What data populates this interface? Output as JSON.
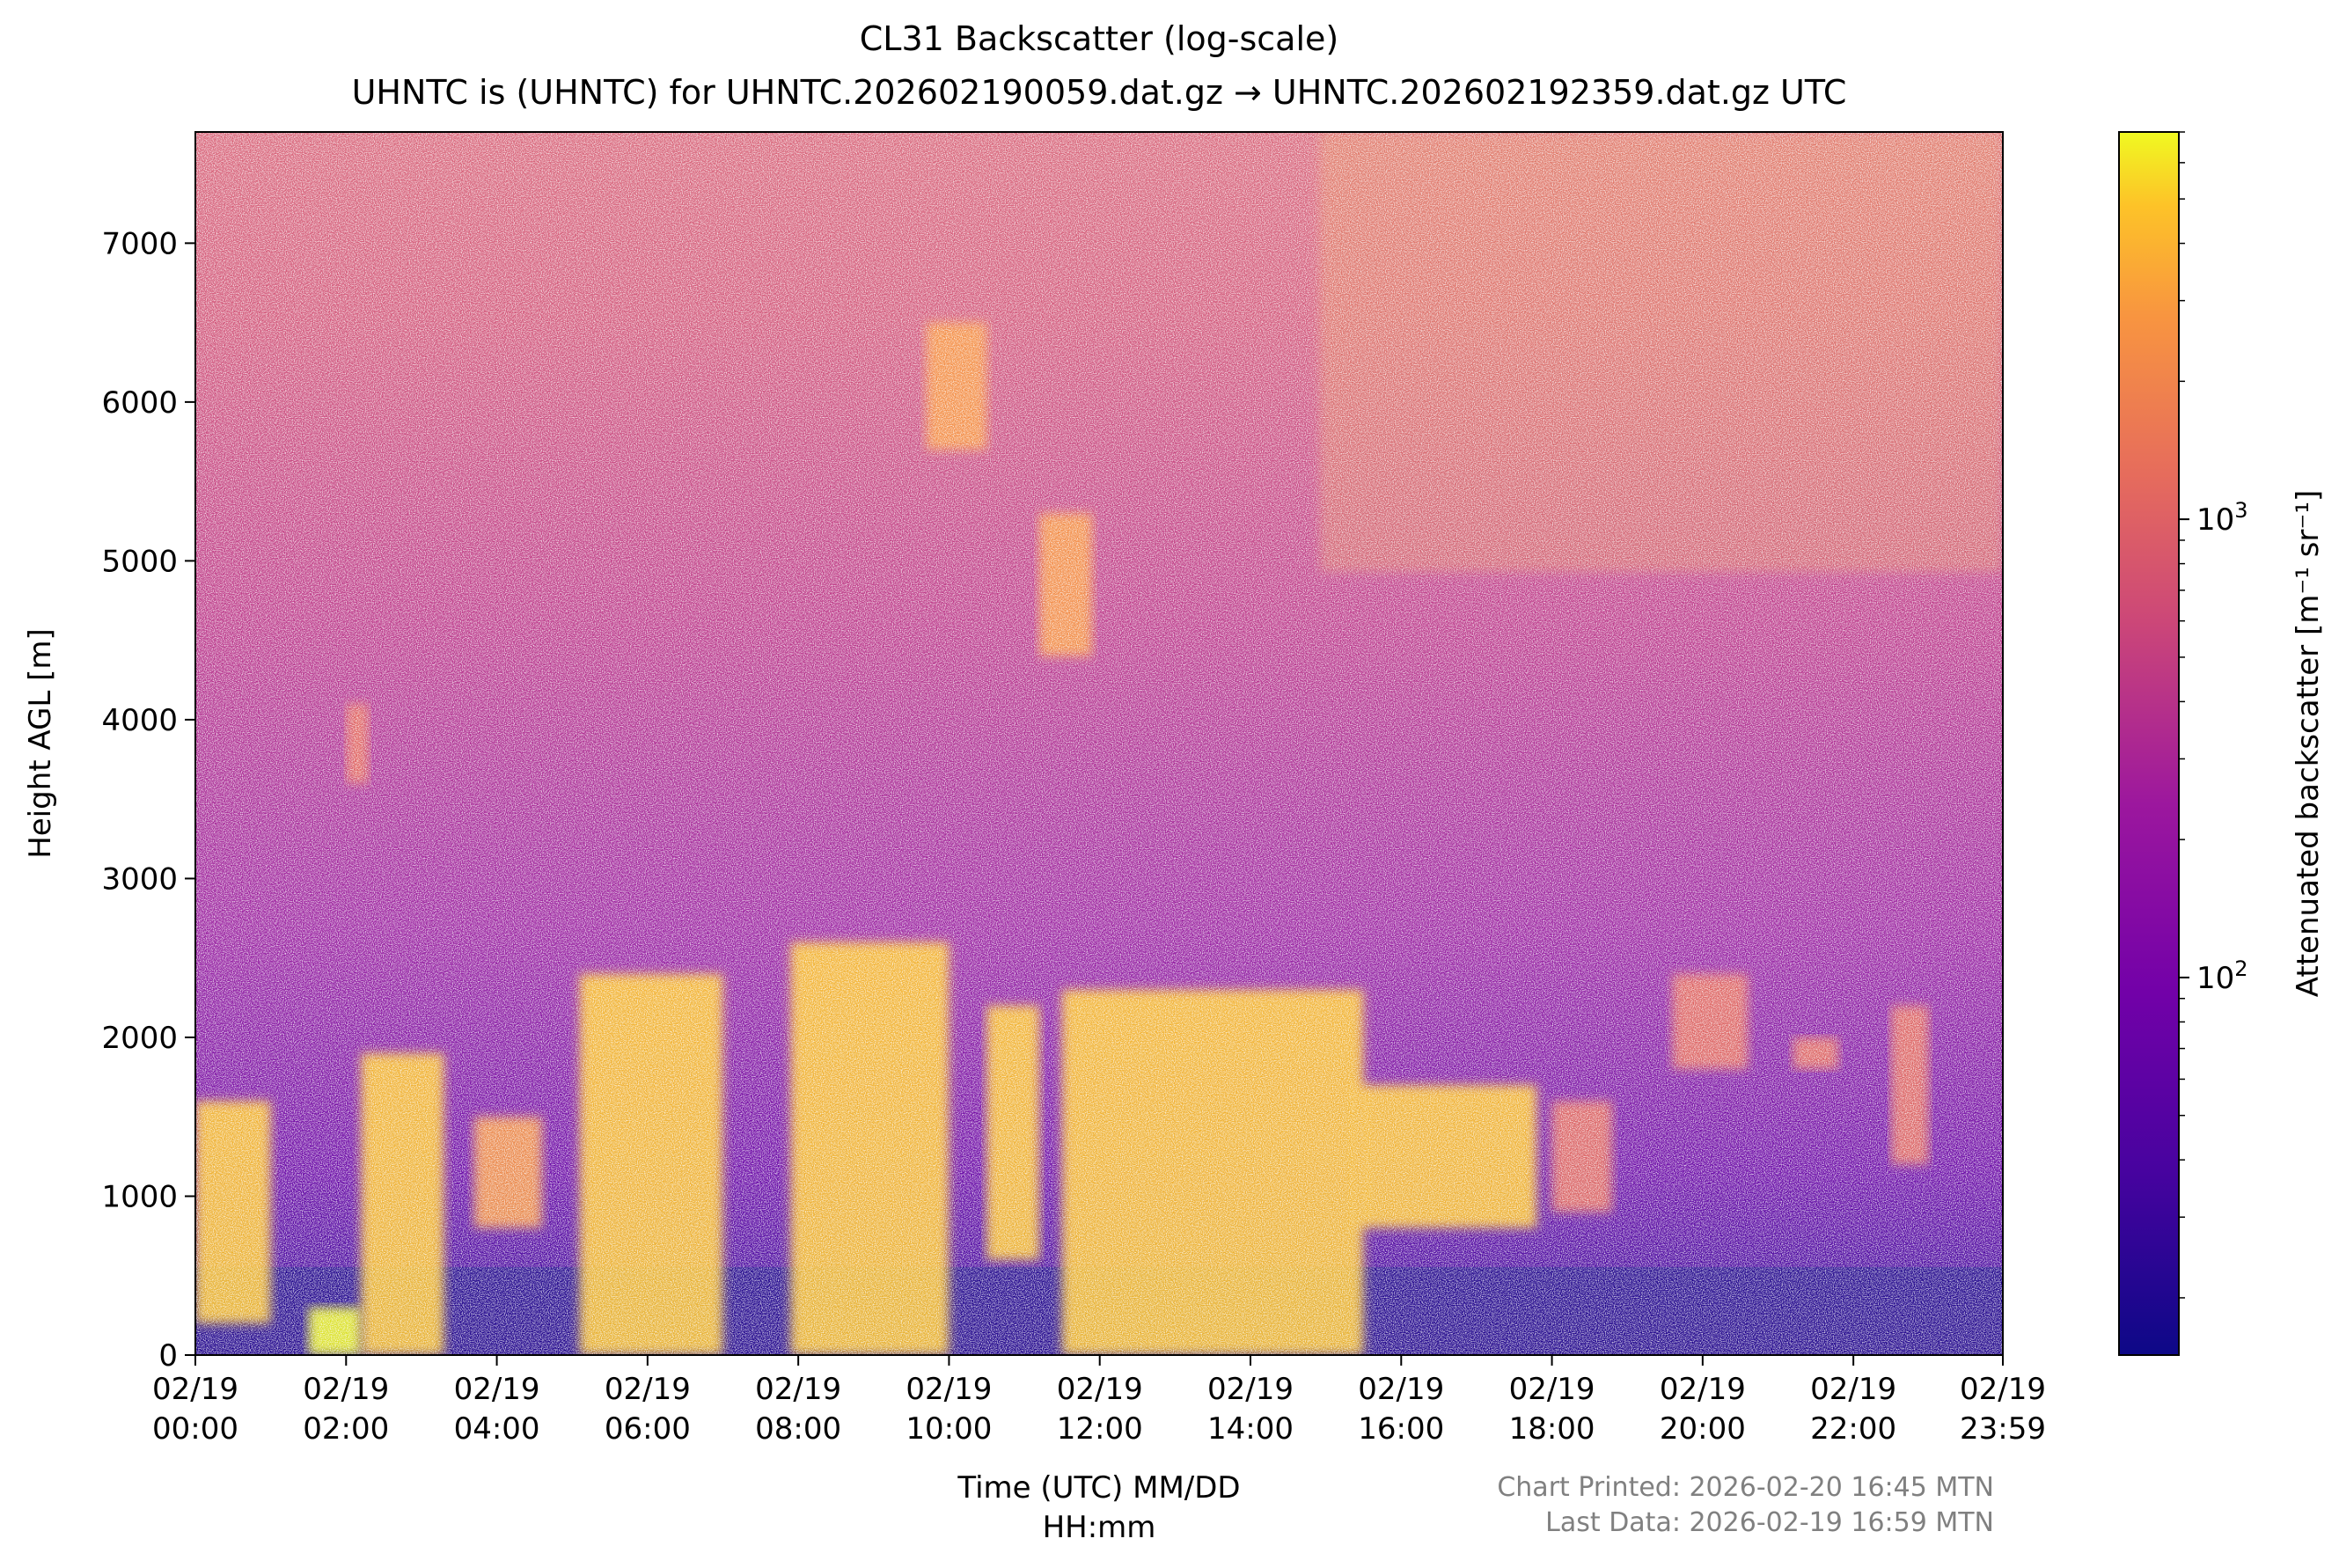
{
  "chart_data": {
    "type": "heatmap",
    "title": "CL31 Backscatter (log-scale)",
    "subtitle": "UHNTC is (UHNTC) for UHNTC.202602190059.dat.gz → UHNTC.202602192359.dat.gz UTC",
    "xlabel_line1": "Time (UTC) MM/DD",
    "xlabel_line2": "HH:mm",
    "ylabel": "Height AGL [m]",
    "colorbar_label": "Attenuated backscatter [m⁻¹ sr⁻¹]",
    "colormap": "plasma",
    "colorscale": "log",
    "colorbar_range": [
      15,
      7000
    ],
    "colorbar_ticks": [
      {
        "value": 100,
        "base": "10",
        "exp": "2"
      },
      {
        "value": 1000,
        "base": "10",
        "exp": "3"
      }
    ],
    "x_range_hours": [
      0,
      23.9833
    ],
    "ylim": [
      0,
      7700
    ],
    "y_ticks": [
      0,
      1000,
      2000,
      3000,
      4000,
      5000,
      6000,
      7000
    ],
    "x_ticks": [
      {
        "hour": 0,
        "date": "02/19",
        "time": "00:00"
      },
      {
        "hour": 2,
        "date": "02/19",
        "time": "02:00"
      },
      {
        "hour": 4,
        "date": "02/19",
        "time": "04:00"
      },
      {
        "hour": 6,
        "date": "02/19",
        "time": "06:00"
      },
      {
        "hour": 8,
        "date": "02/19",
        "time": "08:00"
      },
      {
        "hour": 10,
        "date": "02/19",
        "time": "10:00"
      },
      {
        "hour": 12,
        "date": "02/19",
        "time": "12:00"
      },
      {
        "hour": 14,
        "date": "02/19",
        "time": "14:00"
      },
      {
        "hour": 16,
        "date": "02/19",
        "time": "16:00"
      },
      {
        "hour": 18,
        "date": "02/19",
        "time": "18:00"
      },
      {
        "hour": 20,
        "date": "02/19",
        "time": "20:00"
      },
      {
        "hour": 22,
        "date": "02/19",
        "time": "22:00"
      },
      {
        "hour": 23.9833,
        "date": "02/19",
        "time": "23:59"
      }
    ],
    "cloud_layers": [
      {
        "t0": 0.0,
        "t1": 1.0,
        "base_m": 200,
        "top_m": 1600,
        "intensity": 3000
      },
      {
        "t0": 1.5,
        "t1": 2.2,
        "base_m": 0,
        "top_m": 300,
        "intensity": 5000
      },
      {
        "t0": 2.2,
        "t1": 3.3,
        "base_m": 0,
        "top_m": 1900,
        "intensity": 3000
      },
      {
        "t0": 3.7,
        "t1": 4.6,
        "base_m": 800,
        "top_m": 1500,
        "intensity": 1500
      },
      {
        "t0": 5.1,
        "t1": 7.0,
        "base_m": 0,
        "top_m": 2400,
        "intensity": 3500
      },
      {
        "t0": 7.9,
        "t1": 10.0,
        "base_m": 0,
        "top_m": 2600,
        "intensity": 3500
      },
      {
        "t0": 10.5,
        "t1": 11.2,
        "base_m": 600,
        "top_m": 2200,
        "intensity": 2500
      },
      {
        "t0": 11.5,
        "t1": 15.5,
        "base_m": 0,
        "top_m": 2300,
        "intensity": 4000
      },
      {
        "t0": 15.4,
        "t1": 17.8,
        "base_m": 800,
        "top_m": 1700,
        "intensity": 4000
      },
      {
        "t0": 18.0,
        "t1": 18.8,
        "base_m": 900,
        "top_m": 1600,
        "intensity": 900
      },
      {
        "t0": 19.6,
        "t1": 20.6,
        "base_m": 1800,
        "top_m": 2400,
        "intensity": 900
      },
      {
        "t0": 21.2,
        "t1": 21.8,
        "base_m": 1800,
        "top_m": 2000,
        "intensity": 700
      },
      {
        "t0": 22.5,
        "t1": 23.0,
        "base_m": 1200,
        "top_m": 2200,
        "intensity": 500
      },
      {
        "t0": 9.7,
        "t1": 10.5,
        "base_m": 5700,
        "top_m": 6500,
        "intensity": 2000
      },
      {
        "t0": 11.2,
        "t1": 11.9,
        "base_m": 4400,
        "top_m": 5300,
        "intensity": 1800
      },
      {
        "t0": 2.0,
        "t1": 2.3,
        "base_m": 3600,
        "top_m": 4100,
        "intensity": 900
      }
    ]
  },
  "footer": {
    "printed": "Chart Printed: 2026-02-20 16:45 MTN",
    "last_data": "Last Data: 2026-02-19 16:59 MTN"
  }
}
